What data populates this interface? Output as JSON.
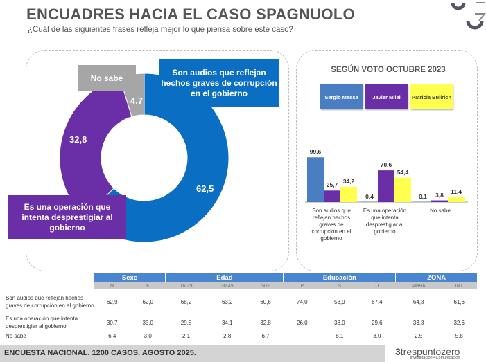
{
  "header": {
    "title": "ENCUADRES HACIA EL CASO SPAGNUOLO",
    "subtitle": "¿Cuál de las siguientes frases refleja mejor lo que piensa sobre este caso?"
  },
  "chart_data": [
    {
      "type": "pie",
      "subtype": "donut",
      "categories": [
        "Son audios que reflejan hechos graves de corrupción en el gobierno",
        "Es una operación que intenta desprestigiar al gobierno",
        "No sabe"
      ],
      "values": [
        62.5,
        32.8,
        4.7
      ],
      "value_labels": [
        "62,5",
        "32,8",
        "4,7"
      ],
      "colors": [
        "#0a6fc2",
        "#6a2ea6",
        "#a6a6a6"
      ]
    },
    {
      "type": "bar",
      "title": "SEGÚN VOTO OCTUBRE 2023",
      "categories": [
        "Son audios que reflejan hechos graves de corrupción en el gobierno",
        "Es una operación que intenta desprestigiar al gobierno",
        "No sabe"
      ],
      "series": [
        {
          "name": "Sergio Massa",
          "values": [
            99.6,
            0.4,
            0.1
          ],
          "labels": [
            "99,6",
            "0,4",
            "0,1"
          ],
          "color": "#4a7ec2"
        },
        {
          "name": "Javier Milei",
          "values": [
            25.7,
            70.6,
            3.8
          ],
          "labels": [
            "25,7",
            "70,6",
            "3,8"
          ],
          "color": "#6a2ea6"
        },
        {
          "name": "Patricia Bullrich",
          "values": [
            34.2,
            54.4,
            11.4
          ],
          "labels": [
            "34,2",
            "54,4",
            "11,4"
          ],
          "color": "#ffff4d"
        }
      ],
      "legend": "top",
      "grid": false
    }
  ],
  "table": {
    "groups": [
      "Sexo",
      "Edad",
      "Educación",
      "ZONA"
    ],
    "columns": [
      "M",
      "F",
      "16-29",
      "30-49",
      "50+",
      "P",
      "S",
      "U",
      "AMBA",
      "INT"
    ],
    "rows": [
      {
        "label": "Son audios que reflejan hechos graves de corrupción en el gobierno",
        "values": [
          "62,9",
          "62,0",
          "68,2",
          "63,2",
          "60,6",
          "74,0",
          "53,9",
          "67,4",
          "64,3",
          "61,6"
        ]
      },
      {
        "label": "Es una operación que intenta desprestigiar al gobierno",
        "values": [
          "30,7",
          "35,0",
          "29,8",
          "34,1",
          "32,8",
          "26,0",
          "38,0",
          "29,6",
          "33,3",
          "32,6"
        ]
      },
      {
        "label": "No sabe",
        "values": [
          "6,4",
          "3,0",
          "2,1",
          "2,8",
          "6,7",
          "",
          "8,1",
          "3,0",
          "2,5",
          "5,8"
        ]
      }
    ]
  },
  "footer": {
    "text": "ENCUESTA NACIONAL. 1200 CASOS. AGOSTO 2025.",
    "brand": "trespuntozero",
    "brand_tagline": "Investigación • Comunicación"
  }
}
